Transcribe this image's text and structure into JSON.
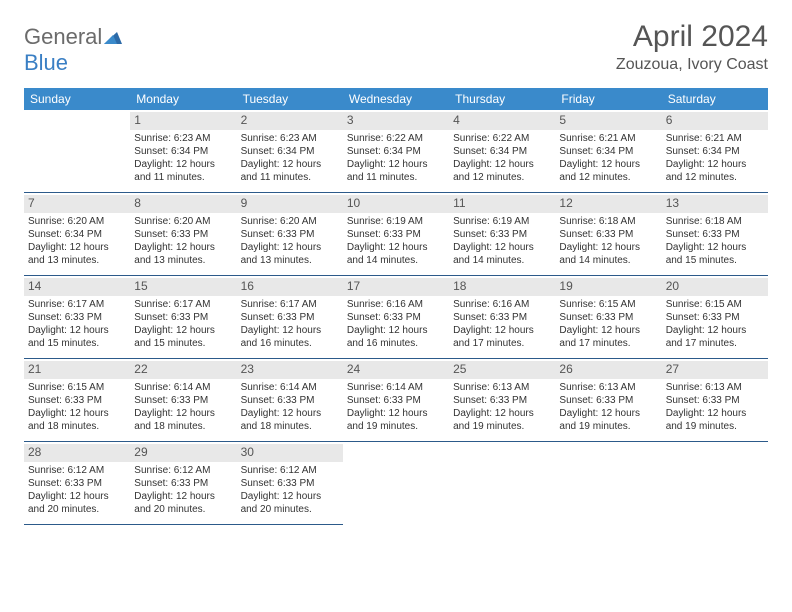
{
  "brand": {
    "part1": "General",
    "part2": "Blue",
    "color_gray": "#6b6b6b",
    "color_blue": "#3a7fc4"
  },
  "title": "April 2024",
  "location": "Zouzoua, Ivory Coast",
  "header_bg": "#3a8acb",
  "header_fg": "#ffffff",
  "daynum_bg": "#e8e8e8",
  "border_color": "#2c5a8a",
  "columns": [
    "Sunday",
    "Monday",
    "Tuesday",
    "Wednesday",
    "Thursday",
    "Friday",
    "Saturday"
  ],
  "start_offset": 1,
  "days": [
    {
      "n": 1,
      "sunrise": "6:23 AM",
      "sunset": "6:34 PM",
      "daylight": "12 hours and 11 minutes."
    },
    {
      "n": 2,
      "sunrise": "6:23 AM",
      "sunset": "6:34 PM",
      "daylight": "12 hours and 11 minutes."
    },
    {
      "n": 3,
      "sunrise": "6:22 AM",
      "sunset": "6:34 PM",
      "daylight": "12 hours and 11 minutes."
    },
    {
      "n": 4,
      "sunrise": "6:22 AM",
      "sunset": "6:34 PM",
      "daylight": "12 hours and 12 minutes."
    },
    {
      "n": 5,
      "sunrise": "6:21 AM",
      "sunset": "6:34 PM",
      "daylight": "12 hours and 12 minutes."
    },
    {
      "n": 6,
      "sunrise": "6:21 AM",
      "sunset": "6:34 PM",
      "daylight": "12 hours and 12 minutes."
    },
    {
      "n": 7,
      "sunrise": "6:20 AM",
      "sunset": "6:34 PM",
      "daylight": "12 hours and 13 minutes."
    },
    {
      "n": 8,
      "sunrise": "6:20 AM",
      "sunset": "6:33 PM",
      "daylight": "12 hours and 13 minutes."
    },
    {
      "n": 9,
      "sunrise": "6:20 AM",
      "sunset": "6:33 PM",
      "daylight": "12 hours and 13 minutes."
    },
    {
      "n": 10,
      "sunrise": "6:19 AM",
      "sunset": "6:33 PM",
      "daylight": "12 hours and 14 minutes."
    },
    {
      "n": 11,
      "sunrise": "6:19 AM",
      "sunset": "6:33 PM",
      "daylight": "12 hours and 14 minutes."
    },
    {
      "n": 12,
      "sunrise": "6:18 AM",
      "sunset": "6:33 PM",
      "daylight": "12 hours and 14 minutes."
    },
    {
      "n": 13,
      "sunrise": "6:18 AM",
      "sunset": "6:33 PM",
      "daylight": "12 hours and 15 minutes."
    },
    {
      "n": 14,
      "sunrise": "6:17 AM",
      "sunset": "6:33 PM",
      "daylight": "12 hours and 15 minutes."
    },
    {
      "n": 15,
      "sunrise": "6:17 AM",
      "sunset": "6:33 PM",
      "daylight": "12 hours and 15 minutes."
    },
    {
      "n": 16,
      "sunrise": "6:17 AM",
      "sunset": "6:33 PM",
      "daylight": "12 hours and 16 minutes."
    },
    {
      "n": 17,
      "sunrise": "6:16 AM",
      "sunset": "6:33 PM",
      "daylight": "12 hours and 16 minutes."
    },
    {
      "n": 18,
      "sunrise": "6:16 AM",
      "sunset": "6:33 PM",
      "daylight": "12 hours and 17 minutes."
    },
    {
      "n": 19,
      "sunrise": "6:15 AM",
      "sunset": "6:33 PM",
      "daylight": "12 hours and 17 minutes."
    },
    {
      "n": 20,
      "sunrise": "6:15 AM",
      "sunset": "6:33 PM",
      "daylight": "12 hours and 17 minutes."
    },
    {
      "n": 21,
      "sunrise": "6:15 AM",
      "sunset": "6:33 PM",
      "daylight": "12 hours and 18 minutes."
    },
    {
      "n": 22,
      "sunrise": "6:14 AM",
      "sunset": "6:33 PM",
      "daylight": "12 hours and 18 minutes."
    },
    {
      "n": 23,
      "sunrise": "6:14 AM",
      "sunset": "6:33 PM",
      "daylight": "12 hours and 18 minutes."
    },
    {
      "n": 24,
      "sunrise": "6:14 AM",
      "sunset": "6:33 PM",
      "daylight": "12 hours and 19 minutes."
    },
    {
      "n": 25,
      "sunrise": "6:13 AM",
      "sunset": "6:33 PM",
      "daylight": "12 hours and 19 minutes."
    },
    {
      "n": 26,
      "sunrise": "6:13 AM",
      "sunset": "6:33 PM",
      "daylight": "12 hours and 19 minutes."
    },
    {
      "n": 27,
      "sunrise": "6:13 AM",
      "sunset": "6:33 PM",
      "daylight": "12 hours and 19 minutes."
    },
    {
      "n": 28,
      "sunrise": "6:12 AM",
      "sunset": "6:33 PM",
      "daylight": "12 hours and 20 minutes."
    },
    {
      "n": 29,
      "sunrise": "6:12 AM",
      "sunset": "6:33 PM",
      "daylight": "12 hours and 20 minutes."
    },
    {
      "n": 30,
      "sunrise": "6:12 AM",
      "sunset": "6:33 PM",
      "daylight": "12 hours and 20 minutes."
    }
  ],
  "labels": {
    "sunrise": "Sunrise:",
    "sunset": "Sunset:",
    "daylight": "Daylight:"
  }
}
